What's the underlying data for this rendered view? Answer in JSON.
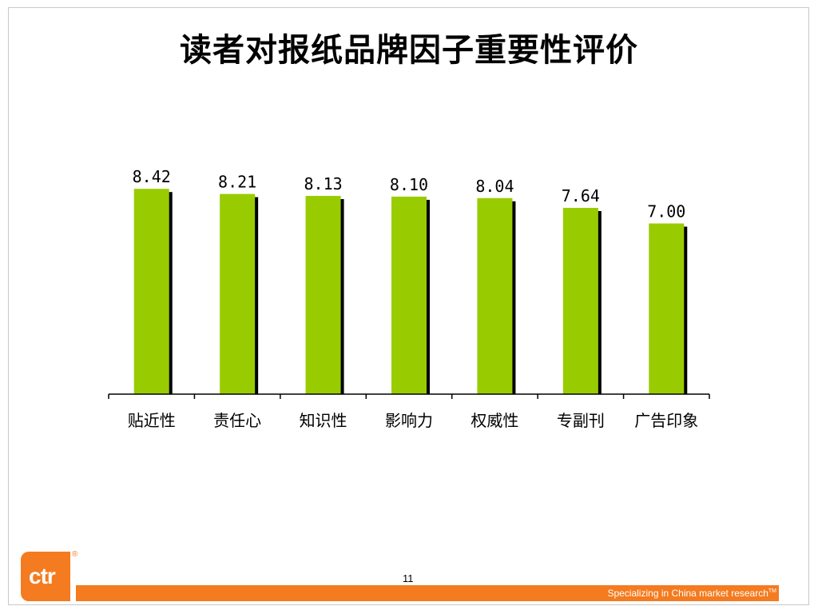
{
  "title": "读者对报纸品牌因子重要性评价",
  "colors": {
    "bar": "#99cc00",
    "shadow": "#000000",
    "accent": "#f47b20"
  },
  "chart_data": {
    "type": "bar",
    "title": "读者对报纸品牌因子重要性评价",
    "categories": [
      "贴近性",
      "责任心",
      "知识性",
      "影响力",
      "权威性",
      "专副刊",
      "广告印象"
    ],
    "values": [
      8.42,
      8.21,
      8.13,
      8.1,
      8.04,
      7.64,
      7.0
    ],
    "labels": [
      "8.42",
      "8.21",
      "8.13",
      "8.10",
      "8.04",
      "7.64",
      "7.00"
    ],
    "xlabel": "",
    "ylabel": "",
    "ylim": [
      0,
      9.2
    ],
    "grid": false
  },
  "footer": {
    "logo": "ctr",
    "registered": "®",
    "page_number": "11",
    "tagline": "Specializing in China market research",
    "tagline_mark": "TM"
  }
}
